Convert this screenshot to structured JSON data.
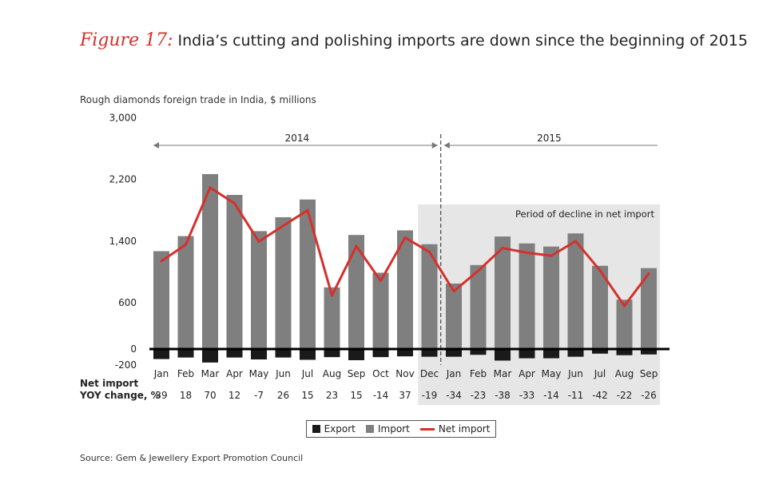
{
  "figure_label": "Figure 17:",
  "title": "India’s cutting and polishing imports are down since the beginning of 2015",
  "subtitle": "Rough diamonds foreign trade in India, $ millions",
  "source": "Source: Gem & Jewellery Export Promotion Council",
  "colors": {
    "export": "#1a1a1a",
    "import": "#7f7f80",
    "net_import": "#d6302a",
    "decline_shade": "#e6e6e6"
  },
  "chart_data": {
    "type": "bar",
    "categories": [
      "Jan",
      "Feb",
      "Mar",
      "Apr",
      "May",
      "Jun",
      "Jul",
      "Aug",
      "Sep",
      "Oct",
      "Nov",
      "Dec",
      "Jan",
      "Feb",
      "Mar",
      "Apr",
      "May",
      "Jun",
      "Jul",
      "Aug",
      "Sep"
    ],
    "series": [
      {
        "name": "Export",
        "values": [
          -130,
          -110,
          -175,
          -110,
          -135,
          -110,
          -140,
          -105,
          -145,
          -105,
          -95,
          -100,
          -100,
          -75,
          -150,
          -120,
          -120,
          -100,
          -60,
          -80,
          -70
        ]
      },
      {
        "name": "Import",
        "values": [
          1270,
          1465,
          2270,
          2000,
          1530,
          1710,
          1940,
          800,
          1480,
          990,
          1540,
          1360,
          850,
          1090,
          1460,
          1370,
          1330,
          1500,
          1080,
          640,
          1050
        ]
      },
      {
        "name": "Net import",
        "values": [
          1140,
          1355,
          2095,
          1890,
          1395,
          1600,
          1800,
          695,
          1335,
          885,
          1445,
          1260,
          750,
          1015,
          1310,
          1250,
          1210,
          1400,
          1020,
          560,
          980
        ]
      }
    ],
    "y_ticks": [
      "3,000",
      "2,200",
      "1,400",
      "600",
      "0",
      "-200"
    ],
    "ylim": [
      -200,
      3000
    ],
    "periods": [
      {
        "label": "2014",
        "from": "Jan",
        "to": "Dec"
      },
      {
        "label": "2015",
        "from": "Jan",
        "to": "Sep"
      }
    ],
    "annotation": "Period of decline in net import",
    "row_label_line1": "Net import",
    "row_label_line2": "YOY change, %",
    "yoy_change": [
      "39",
      "18",
      "70",
      "12",
      "-7",
      "26",
      "15",
      "23",
      "15",
      "-14",
      "37",
      "-19",
      "-34",
      "-23",
      "-38",
      "-33",
      "-14",
      "-11",
      "-42",
      "-22",
      "-26"
    ],
    "legend": [
      "Export",
      "Import",
      "Net import"
    ],
    "grid": false
  }
}
